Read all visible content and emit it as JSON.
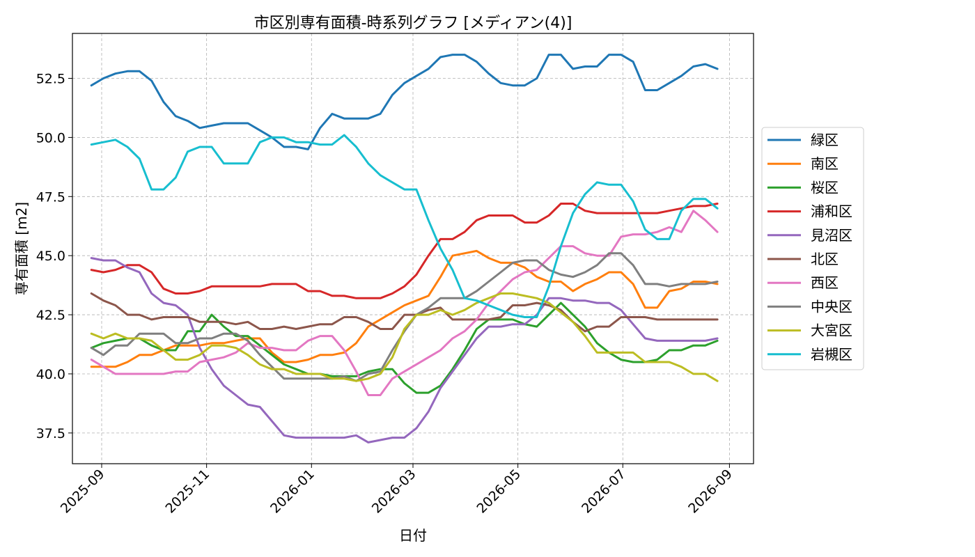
{
  "chart_data": {
    "type": "line",
    "title": "市区別専有面積-時系列グラフ [メディアン(4)]",
    "xlabel": "日付",
    "ylabel": "専有面積 [m2]",
    "x_ticks": [
      "2025-09",
      "2025-11",
      "2026-01",
      "2026-03",
      "2026-05",
      "2026-07",
      "2026-09"
    ],
    "y_ticks": [
      "37.5",
      "40.0",
      "42.5",
      "45.0",
      "47.5",
      "50.0",
      "52.5"
    ],
    "ylim": [
      36.2,
      54.4
    ],
    "xlim": [
      "2025-08-15",
      "2026-09-15"
    ],
    "grid": true,
    "legend_position": "right",
    "x": [
      "2025-08-26",
      "2025-09-02",
      "2025-09-09",
      "2025-09-16",
      "2025-09-23",
      "2025-09-30",
      "2025-10-07",
      "2025-10-14",
      "2025-10-21",
      "2025-10-28",
      "2025-11-04",
      "2025-11-11",
      "2025-11-18",
      "2025-11-25",
      "2025-12-02",
      "2025-12-09",
      "2025-12-16",
      "2025-12-23",
      "2025-12-30",
      "2026-01-06",
      "2026-01-13",
      "2026-01-20",
      "2026-01-27",
      "2026-02-03",
      "2026-02-10",
      "2026-02-17",
      "2026-02-24",
      "2026-03-03",
      "2026-03-10",
      "2026-03-17",
      "2026-03-24",
      "2026-03-31",
      "2026-04-07",
      "2026-04-14",
      "2026-04-21",
      "2026-04-28",
      "2026-05-05",
      "2026-05-12",
      "2026-05-19",
      "2026-05-26",
      "2026-06-02",
      "2026-06-09",
      "2026-06-16",
      "2026-06-23",
      "2026-06-30",
      "2026-07-07",
      "2026-07-14",
      "2026-07-21",
      "2026-07-28",
      "2026-08-04",
      "2026-08-11",
      "2026-08-18",
      "2026-08-25"
    ],
    "series": [
      {
        "name": "緑区",
        "color": "#1f77b4",
        "values": [
          52.2,
          52.5,
          52.7,
          52.8,
          52.8,
          52.4,
          51.5,
          50.9,
          50.7,
          50.4,
          50.5,
          50.6,
          50.6,
          50.6,
          50.3,
          50.0,
          49.6,
          49.6,
          49.5,
          50.4,
          51.0,
          50.8,
          50.8,
          50.8,
          51.0,
          51.8,
          52.3,
          52.6,
          52.9,
          53.4,
          53.5,
          53.5,
          53.2,
          52.7,
          52.3,
          52.2,
          52.2,
          52.5,
          53.5,
          53.5,
          52.9,
          53.0,
          53.0,
          53.5,
          53.5,
          53.2,
          52.0,
          52.0,
          52.3,
          52.6,
          53.0,
          53.1,
          52.9
        ]
      },
      {
        "name": "南区",
        "color": "#ff7f0e",
        "values": [
          40.3,
          40.3,
          40.3,
          40.5,
          40.8,
          40.8,
          41.0,
          41.2,
          41.2,
          41.2,
          41.3,
          41.3,
          41.4,
          41.5,
          41.5,
          40.9,
          40.5,
          40.5,
          40.6,
          40.8,
          40.8,
          40.9,
          41.3,
          42.0,
          42.3,
          42.6,
          42.9,
          43.1,
          43.3,
          44.1,
          45.0,
          45.1,
          45.2,
          44.9,
          44.7,
          44.7,
          44.5,
          44.1,
          43.9,
          43.9,
          43.5,
          43.8,
          44.0,
          44.3,
          44.3,
          43.8,
          42.8,
          42.8,
          43.5,
          43.6,
          43.9,
          43.9,
          43.8
        ]
      },
      {
        "name": "桜区",
        "color": "#2ca02c",
        "values": [
          41.1,
          41.3,
          41.4,
          41.5,
          41.5,
          41.2,
          41.0,
          41.0,
          41.8,
          41.8,
          42.5,
          42.0,
          41.6,
          41.6,
          41.2,
          40.8,
          40.4,
          40.2,
          40.0,
          40.0,
          39.9,
          39.9,
          39.9,
          40.1,
          40.2,
          40.2,
          39.6,
          39.2,
          39.2,
          39.5,
          40.2,
          41.0,
          41.9,
          42.3,
          42.3,
          42.3,
          42.1,
          42.0,
          42.5,
          43.0,
          42.5,
          42.0,
          41.3,
          40.9,
          40.6,
          40.5,
          40.5,
          40.6,
          41.0,
          41.0,
          41.2,
          41.2,
          41.4
        ]
      },
      {
        "name": "浦和区",
        "color": "#d62728",
        "values": [
          44.4,
          44.3,
          44.4,
          44.6,
          44.6,
          44.3,
          43.6,
          43.4,
          43.4,
          43.5,
          43.7,
          43.7,
          43.7,
          43.7,
          43.7,
          43.8,
          43.8,
          43.8,
          43.5,
          43.5,
          43.3,
          43.3,
          43.2,
          43.2,
          43.2,
          43.4,
          43.7,
          44.2,
          45.0,
          45.7,
          45.7,
          46.0,
          46.5,
          46.7,
          46.7,
          46.7,
          46.4,
          46.4,
          46.7,
          47.2,
          47.2,
          46.9,
          46.8,
          46.8,
          46.8,
          46.8,
          46.8,
          46.8,
          46.9,
          47.0,
          47.1,
          47.1,
          47.2
        ]
      },
      {
        "name": "見沼区",
        "color": "#9467bd",
        "values": [
          44.9,
          44.8,
          44.8,
          44.5,
          44.3,
          43.4,
          43.0,
          42.9,
          42.5,
          41.1,
          40.2,
          39.5,
          39.1,
          38.7,
          38.6,
          38.0,
          37.4,
          37.3,
          37.3,
          37.3,
          37.3,
          37.3,
          37.4,
          37.1,
          37.2,
          37.3,
          37.3,
          37.7,
          38.4,
          39.4,
          40.1,
          40.8,
          41.5,
          42.0,
          42.0,
          42.1,
          42.1,
          42.5,
          43.2,
          43.2,
          43.1,
          43.1,
          43.0,
          43.0,
          42.7,
          42.1,
          41.5,
          41.4,
          41.4,
          41.4,
          41.4,
          41.4,
          41.5
        ]
      },
      {
        "name": "北区",
        "color": "#8c564b",
        "values": [
          43.4,
          43.1,
          42.9,
          42.5,
          42.5,
          42.3,
          42.4,
          42.4,
          42.4,
          42.2,
          42.2,
          42.2,
          42.1,
          42.2,
          41.9,
          41.9,
          42.0,
          41.9,
          42.0,
          42.1,
          42.1,
          42.4,
          42.4,
          42.2,
          41.9,
          41.9,
          42.5,
          42.5,
          42.7,
          42.8,
          42.3,
          42.3,
          42.3,
          42.3,
          42.4,
          42.9,
          42.9,
          43.0,
          42.9,
          42.7,
          42.2,
          41.8,
          42.0,
          42.0,
          42.4,
          42.4,
          42.4,
          42.3,
          42.3,
          42.3,
          42.3,
          42.3,
          42.3
        ]
      },
      {
        "name": "西区",
        "color": "#e377c2",
        "values": [
          40.6,
          40.3,
          40.0,
          40.0,
          40.0,
          40.0,
          40.0,
          40.1,
          40.1,
          40.5,
          40.6,
          40.7,
          40.9,
          41.3,
          41.1,
          41.1,
          41.0,
          41.0,
          41.4,
          41.6,
          41.6,
          41.0,
          40.1,
          39.1,
          39.1,
          39.8,
          40.1,
          40.4,
          40.7,
          41.0,
          41.5,
          41.8,
          42.3,
          43.0,
          43.5,
          44.0,
          44.3,
          44.4,
          44.9,
          45.4,
          45.4,
          45.1,
          45.0,
          45.0,
          45.8,
          45.9,
          45.9,
          46.0,
          46.2,
          46.0,
          46.9,
          46.5,
          46.0
        ]
      },
      {
        "name": "中央区",
        "color": "#7f7f7f",
        "values": [
          41.1,
          40.8,
          41.2,
          41.2,
          41.7,
          41.7,
          41.7,
          41.3,
          41.3,
          41.5,
          41.5,
          41.7,
          41.7,
          41.4,
          40.8,
          40.3,
          39.8,
          39.8,
          39.8,
          39.8,
          39.8,
          39.9,
          39.7,
          40.0,
          40.1,
          41.0,
          41.8,
          42.5,
          42.8,
          43.2,
          43.2,
          43.2,
          43.5,
          43.9,
          44.3,
          44.7,
          44.8,
          44.8,
          44.4,
          44.2,
          44.1,
          44.3,
          44.6,
          45.1,
          45.1,
          44.6,
          43.8,
          43.8,
          43.7,
          43.8,
          43.8,
          43.8,
          43.9
        ]
      },
      {
        "name": "大宮区",
        "color": "#bcbd22",
        "values": [
          41.7,
          41.5,
          41.7,
          41.5,
          41.5,
          41.4,
          41.0,
          40.6,
          40.6,
          40.8,
          41.2,
          41.2,
          41.1,
          40.8,
          40.4,
          40.2,
          40.2,
          40.0,
          40.0,
          40.0,
          39.8,
          39.8,
          39.7,
          39.8,
          40.0,
          40.7,
          41.9,
          42.5,
          42.5,
          42.7,
          42.5,
          42.7,
          43.0,
          43.2,
          43.4,
          43.4,
          43.3,
          43.2,
          43.0,
          42.6,
          42.2,
          41.6,
          40.9,
          40.9,
          40.9,
          40.9,
          40.5,
          40.5,
          40.5,
          40.3,
          40.0,
          40.0,
          39.7
        ]
      },
      {
        "name": "岩槻区",
        "color": "#17becf",
        "values": [
          49.7,
          49.8,
          49.9,
          49.6,
          49.1,
          47.8,
          47.8,
          48.3,
          49.4,
          49.6,
          49.6,
          48.9,
          48.9,
          48.9,
          49.8,
          50.0,
          50.0,
          49.8,
          49.8,
          49.7,
          49.7,
          50.1,
          49.6,
          48.9,
          48.4,
          48.1,
          47.8,
          47.8,
          46.5,
          45.3,
          44.4,
          43.2,
          43.1,
          42.9,
          42.7,
          42.5,
          42.4,
          42.4,
          43.7,
          45.4,
          46.8,
          47.6,
          48.1,
          48.0,
          48.0,
          47.3,
          46.1,
          45.7,
          45.7,
          46.9,
          47.4,
          47.4,
          47.0
        ]
      }
    ]
  }
}
